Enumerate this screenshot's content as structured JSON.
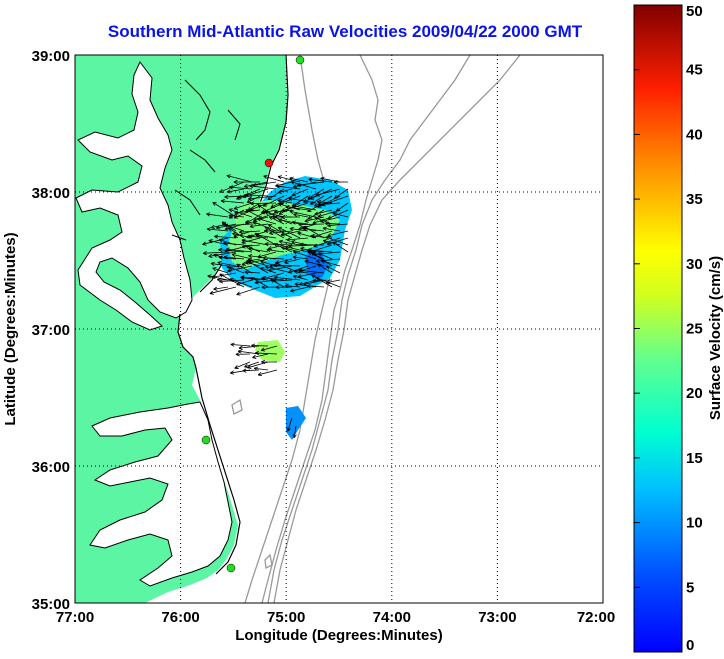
{
  "title": "Southern Mid-Atlantic Raw Velocities 2009/04/22 2000 GMT",
  "axes": {
    "xlabel": "Longitude (Degrees:Minutes)",
    "ylabel": "Latitude (Degrees:Minutes)",
    "x_ticks": [
      "77:00",
      "76:00",
      "75:00",
      "74:00",
      "73:00",
      "72:00"
    ],
    "y_ticks": [
      "39:00",
      "38:00",
      "37:00",
      "36:00",
      "35:00"
    ],
    "x_range_deg_west": [
      77,
      72
    ],
    "y_range_deg_north": [
      35,
      39
    ],
    "grid": "dotted"
  },
  "colorbar": {
    "label": "Surface Velocity (cm/s)",
    "ticks": [
      "0",
      "5",
      "10",
      "15",
      "20",
      "25",
      "30",
      "35",
      "40",
      "45",
      "50"
    ],
    "range": [
      0,
      50
    ],
    "colormap": "jet"
  },
  "colors": {
    "title": "#0a14e6",
    "land": "#5cf5a4",
    "coastline": "#000000",
    "bathymetry": "#999999",
    "station_active": "#22dd22",
    "station_inactive": "#ee1111"
  },
  "stations": [
    {
      "status": "active",
      "lon": 74.87,
      "lat": 38.95
    },
    {
      "status": "inactive",
      "lon": 75.16,
      "lat": 38.22
    },
    {
      "status": "active",
      "lon": 75.71,
      "lat": 36.18
    },
    {
      "status": "active",
      "lon": 75.48,
      "lat": 35.27
    }
  ]
}
